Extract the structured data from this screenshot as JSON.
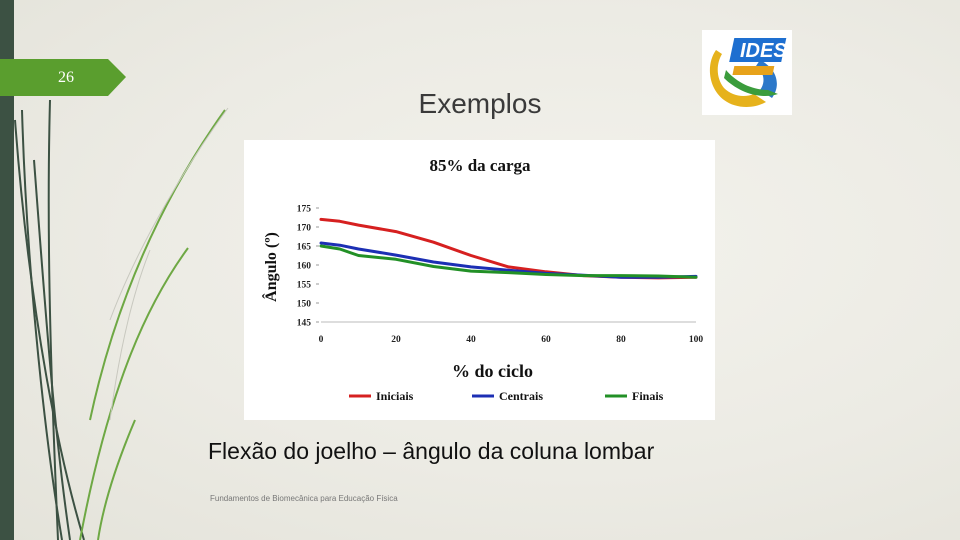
{
  "slide": {
    "number": "26",
    "title": "Exemplos",
    "caption": "Flexão do joelho – ângulo da coluna lombar",
    "footer": "Fundamentos de Biomecânica para Educação Física",
    "logo_text": "IDES",
    "colors": {
      "left_bar": "#3c5143",
      "number_tab": "#5a9e2e",
      "background": "#ecebe4"
    }
  },
  "chart_data": {
    "type": "line",
    "title": "85% da carga",
    "xlabel": "% do ciclo",
    "ylabel": "Ângulo (º)",
    "xlim": [
      0,
      100
    ],
    "ylim": [
      145,
      175
    ],
    "x_ticks": [
      0,
      20,
      40,
      60,
      80,
      100
    ],
    "y_ticks": [
      145,
      150,
      155,
      160,
      165,
      170,
      175
    ],
    "grid": false,
    "legend_position": "bottom",
    "series": [
      {
        "name": "Iniciais",
        "color": "#d62020",
        "x": [
          0,
          5,
          10,
          20,
          30,
          40,
          50,
          60,
          70,
          80,
          90,
          100
        ],
        "y": [
          172,
          171.5,
          170.5,
          168.8,
          166,
          162.5,
          159.5,
          158.2,
          157.2,
          156.8,
          156.6,
          156.8
        ]
      },
      {
        "name": "Centrais",
        "color": "#1c2fb4",
        "x": [
          0,
          5,
          10,
          20,
          30,
          40,
          50,
          60,
          70,
          80,
          90,
          100
        ],
        "y": [
          165.8,
          165.2,
          164.2,
          162.6,
          160.8,
          159.5,
          158.6,
          157.8,
          157.3,
          156.8,
          156.8,
          157
        ]
      },
      {
        "name": "Finais",
        "color": "#229026",
        "x": [
          0,
          5,
          10,
          20,
          30,
          40,
          50,
          60,
          70,
          80,
          90,
          100
        ],
        "y": [
          165,
          164.2,
          162.5,
          161.5,
          159.6,
          158.4,
          158,
          157.5,
          157.2,
          157.2,
          157.1,
          156.8
        ]
      }
    ]
  }
}
